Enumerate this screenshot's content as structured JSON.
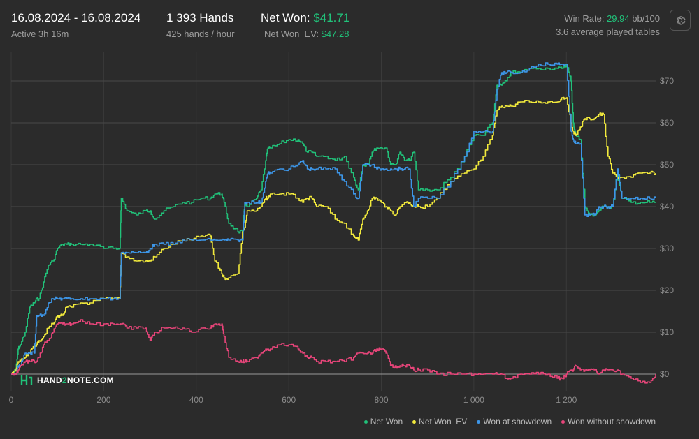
{
  "header": {
    "date_range": "16.08.2024 - 16.08.2024",
    "active": "Active 3h 16m",
    "hands": "1 393 Hands",
    "hands_rate": "425 hands / hour",
    "net_won_label": "Net Won:",
    "net_won_value": "$41.71",
    "net_won_ev_label": "Net Won  EV:",
    "net_won_ev_value": "$47.28",
    "win_rate_label": "Win Rate:",
    "win_rate_value": "29.94",
    "win_rate_unit": "bb/100",
    "tables": "3.6 average played tables"
  },
  "icons": {
    "settings": "gear-icon",
    "logo": "hand2note-logo-icon"
  },
  "logo_text": {
    "part1": "HAND",
    "part2": "2",
    "part3": "NOTE.COM"
  },
  "colors": {
    "background": "#2b2b2b",
    "net_won": "#21c27a",
    "net_won_ev": "#f2ea3c",
    "won_at_showdown": "#3d96e8",
    "won_without_showdown": "#e8457a"
  },
  "chart_data": {
    "type": "line",
    "xlabel": "",
    "ylabel": "",
    "xlim": [
      0,
      1393
    ],
    "ylim": [
      -4,
      77
    ],
    "x_ticks": [
      0,
      200,
      400,
      600,
      800,
      1000,
      1200
    ],
    "x_tick_labels": [
      "0",
      "200",
      "400",
      "600",
      "800",
      "1 000",
      "1 200"
    ],
    "y_ticks": [
      0,
      10,
      20,
      30,
      40,
      50,
      60,
      70
    ],
    "y_tick_labels": [
      "$0",
      "$10",
      "$20",
      "$30",
      "$40",
      "$50",
      "$60",
      "$70"
    ],
    "grid": true,
    "legend_position": "bottom-right",
    "series": [
      {
        "name": "Net Won",
        "color": "#21c27a",
        "x": [
          0,
          10,
          15,
          20,
          30,
          40,
          50,
          55,
          60,
          70,
          80,
          90,
          100,
          110,
          120,
          130,
          150,
          170,
          200,
          220,
          235,
          238,
          250,
          270,
          290,
          300,
          310,
          330,
          350,
          370,
          390,
          410,
          430,
          440,
          455,
          460,
          470,
          490,
          500,
          505,
          510,
          530,
          540,
          550,
          555,
          560,
          580,
          600,
          620,
          630,
          640,
          650,
          660,
          680,
          700,
          720,
          740,
          750,
          760,
          770,
          780,
          790,
          800,
          810,
          820,
          830,
          840,
          850,
          860,
          870,
          880,
          900,
          920,
          950,
          980,
          1000,
          1020,
          1040,
          1050,
          1060,
          1070,
          1080,
          1100,
          1120,
          1140,
          1160,
          1180,
          1190,
          1200,
          1210,
          1215,
          1220,
          1230,
          1240,
          1250,
          1260,
          1270,
          1280,
          1290,
          1300,
          1310,
          1320,
          1340,
          1360,
          1380,
          1393
        ],
        "y": [
          0,
          1,
          6,
          7,
          10,
          16,
          17,
          18,
          18,
          22,
          26,
          27,
          30,
          31,
          31,
          31,
          31,
          31,
          30,
          30,
          30,
          42,
          39,
          38,
          39,
          39,
          37,
          39,
          40,
          41,
          41,
          42,
          42,
          43,
          43,
          41,
          36,
          34,
          34,
          41,
          40,
          42,
          44,
          51,
          54,
          54,
          55,
          56,
          56,
          55,
          53,
          53,
          52,
          52,
          51,
          52,
          47,
          44,
          50,
          50,
          53,
          54,
          54,
          54,
          50,
          50,
          53,
          51,
          51,
          53,
          44,
          44,
          44,
          47,
          52,
          57,
          57,
          60,
          69,
          69,
          70,
          72,
          72,
          73,
          73,
          73,
          73,
          73,
          74,
          70,
          60,
          57,
          56,
          40,
          38,
          38,
          39,
          40,
          40,
          40,
          48,
          42,
          41,
          41,
          41,
          41
        ]
      },
      {
        "name": "Net Won  EV",
        "color": "#f2ea3c",
        "x": [
          0,
          10,
          15,
          20,
          30,
          40,
          50,
          55,
          60,
          70,
          80,
          90,
          100,
          110,
          120,
          130,
          150,
          170,
          200,
          220,
          235,
          238,
          250,
          270,
          290,
          300,
          310,
          330,
          350,
          370,
          390,
          410,
          430,
          440,
          455,
          460,
          470,
          490,
          500,
          505,
          510,
          530,
          540,
          550,
          555,
          560,
          580,
          600,
          620,
          630,
          640,
          650,
          660,
          680,
          700,
          720,
          740,
          750,
          760,
          770,
          780,
          790,
          800,
          810,
          820,
          830,
          840,
          850,
          860,
          870,
          880,
          900,
          920,
          950,
          980,
          1000,
          1020,
          1040,
          1050,
          1060,
          1070,
          1080,
          1100,
          1120,
          1140,
          1160,
          1180,
          1190,
          1200,
          1210,
          1215,
          1220,
          1230,
          1240,
          1250,
          1260,
          1270,
          1280,
          1290,
          1300,
          1310,
          1320,
          1340,
          1360,
          1380,
          1393
        ],
        "y": [
          0,
          1,
          3,
          3,
          4,
          5,
          7,
          7,
          8,
          9,
          11,
          12,
          14,
          14,
          16,
          16,
          17,
          17,
          18,
          18,
          18,
          29,
          28,
          27,
          27,
          27,
          28,
          30,
          31,
          32,
          32,
          33,
          33,
          27,
          24,
          23,
          23,
          24,
          34,
          35,
          39,
          39,
          40,
          42,
          42,
          43,
          43,
          43,
          42,
          41,
          42,
          42,
          40,
          40,
          37,
          36,
          33,
          32,
          37,
          39,
          42,
          42,
          41,
          40,
          39,
          38,
          40,
          41,
          41,
          40,
          40,
          40,
          42,
          46,
          48,
          49,
          52,
          57,
          63,
          64,
          64,
          64,
          65,
          65,
          65,
          65,
          65,
          66,
          66,
          60,
          58,
          57,
          59,
          61,
          61,
          61,
          62,
          62,
          52,
          48,
          47,
          47,
          47,
          48,
          48,
          48
        ]
      },
      {
        "name": "Won at showdown",
        "color": "#3d96e8",
        "x": [
          0,
          10,
          15,
          20,
          30,
          40,
          50,
          55,
          60,
          70,
          80,
          90,
          100,
          110,
          120,
          130,
          150,
          170,
          200,
          220,
          235,
          238,
          250,
          270,
          290,
          300,
          310,
          330,
          350,
          370,
          390,
          410,
          430,
          440,
          455,
          460,
          470,
          490,
          500,
          505,
          510,
          530,
          540,
          550,
          555,
          560,
          580,
          600,
          620,
          630,
          640,
          650,
          660,
          680,
          700,
          720,
          740,
          750,
          760,
          770,
          780,
          790,
          800,
          810,
          820,
          830,
          840,
          850,
          860,
          870,
          880,
          900,
          920,
          950,
          980,
          1000,
          1020,
          1040,
          1050,
          1060,
          1070,
          1080,
          1100,
          1120,
          1140,
          1160,
          1180,
          1190,
          1200,
          1210,
          1215,
          1220,
          1230,
          1240,
          1250,
          1260,
          1270,
          1280,
          1290,
          1300,
          1310,
          1320,
          1340,
          1360,
          1380,
          1393
        ],
        "y": [
          0,
          0,
          2,
          2,
          5,
          5,
          5,
          14,
          14,
          14,
          17,
          18,
          18,
          18,
          18,
          18,
          18,
          18,
          18,
          18,
          18,
          29,
          29,
          29,
          29,
          30,
          31,
          31,
          31,
          32,
          32,
          32,
          32,
          32,
          32,
          32,
          32,
          32,
          32,
          41,
          41,
          41,
          41,
          46,
          48,
          48,
          49,
          49,
          50,
          51,
          49,
          49,
          49,
          49,
          49,
          46,
          43,
          42,
          50,
          50,
          50,
          49,
          49,
          49,
          49,
          49,
          49,
          49,
          49,
          40,
          42,
          42,
          42,
          46,
          52,
          58,
          58,
          58,
          68,
          72,
          72,
          72,
          72,
          73,
          74,
          74,
          74,
          74,
          74,
          58,
          56,
          55,
          55,
          38,
          38,
          38,
          40,
          40,
          40,
          40,
          49,
          42,
          42,
          42,
          42,
          42
        ]
      },
      {
        "name": "Won without showdown",
        "color": "#e8457a",
        "x": [
          0,
          10,
          15,
          20,
          30,
          40,
          50,
          55,
          60,
          70,
          80,
          90,
          100,
          110,
          120,
          130,
          150,
          170,
          200,
          220,
          235,
          238,
          250,
          270,
          290,
          300,
          310,
          330,
          350,
          370,
          390,
          410,
          430,
          440,
          455,
          460,
          470,
          490,
          500,
          505,
          510,
          530,
          540,
          550,
          555,
          560,
          580,
          600,
          620,
          630,
          640,
          650,
          660,
          680,
          700,
          720,
          740,
          750,
          760,
          770,
          780,
          790,
          800,
          810,
          820,
          830,
          840,
          850,
          860,
          870,
          880,
          900,
          920,
          950,
          980,
          1000,
          1020,
          1040,
          1050,
          1060,
          1070,
          1080,
          1100,
          1120,
          1140,
          1160,
          1180,
          1190,
          1200,
          1210,
          1215,
          1220,
          1230,
          1240,
          1250,
          1260,
          1270,
          1280,
          1290,
          1300,
          1310,
          1320,
          1340,
          1360,
          1380,
          1393
        ],
        "y": [
          0,
          0,
          1,
          2,
          3,
          3,
          3,
          3,
          4,
          7,
          8,
          10,
          12,
          12,
          12,
          12,
          13,
          12,
          12,
          12,
          12,
          12,
          11,
          11,
          11,
          8,
          10,
          11,
          11,
          11,
          10,
          11,
          11,
          12,
          12,
          9,
          4,
          3,
          3,
          3,
          3,
          4,
          5,
          6,
          6,
          6,
          7,
          7,
          6,
          5,
          4,
          4,
          3,
          3,
          3,
          3,
          4,
          5,
          5,
          5,
          5,
          6,
          6,
          5,
          2,
          2,
          2,
          2,
          2,
          1,
          1,
          1,
          0,
          0,
          0,
          0,
          0,
          0,
          0,
          0,
          -1,
          -1,
          0,
          0,
          0,
          0,
          -1,
          -1,
          0,
          1,
          1,
          2,
          1,
          1,
          1,
          1,
          0,
          1,
          1,
          1,
          1,
          0,
          -1,
          -2,
          -2,
          0
        ]
      }
    ]
  }
}
